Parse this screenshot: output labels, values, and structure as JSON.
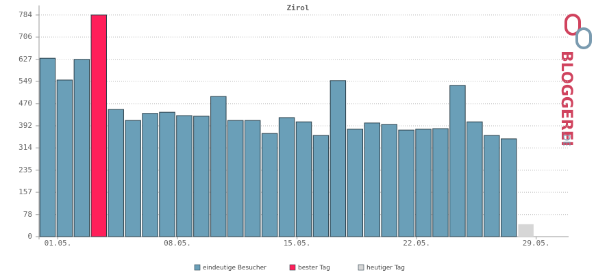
{
  "chart_data": {
    "type": "bar",
    "title": "Zirol",
    "categories": [
      "01.05.",
      null,
      null,
      null,
      null,
      null,
      null,
      "08.05.",
      null,
      null,
      null,
      null,
      null,
      null,
      "15.05.",
      null,
      null,
      null,
      null,
      null,
      null,
      "22.05.",
      null,
      null,
      null,
      null,
      null,
      null,
      "29.05.",
      null,
      null
    ],
    "series": [
      {
        "name": "eindeutige Besucher",
        "color": "#6a9fb8",
        "values": [
          631,
          554,
          627,
          null,
          450,
          411,
          436,
          440,
          428,
          426,
          496,
          411,
          411,
          365,
          421,
          406,
          358,
          552,
          380,
          402,
          397,
          377,
          380,
          382,
          535,
          406,
          358,
          346,
          null,
          null,
          null
        ]
      },
      {
        "name": "bester Tag",
        "color": "#ff1f5a",
        "values": [
          null,
          null,
          null,
          784,
          null,
          null,
          null,
          null,
          null,
          null,
          null,
          null,
          null,
          null,
          null,
          null,
          null,
          null,
          null,
          null,
          null,
          null,
          null,
          null,
          null,
          null,
          null,
          null,
          null,
          null,
          null
        ]
      },
      {
        "name": "heutiger Tag",
        "color": "#d6d6d6",
        "values": [
          null,
          null,
          null,
          null,
          null,
          null,
          null,
          null,
          null,
          null,
          null,
          null,
          null,
          null,
          null,
          null,
          null,
          null,
          null,
          null,
          null,
          null,
          null,
          null,
          null,
          null,
          null,
          null,
          44,
          null,
          null
        ]
      }
    ],
    "ylim": [
      0,
      808
    ],
    "yticks": [
      0,
      78,
      157,
      235,
      314,
      392,
      470,
      549,
      627,
      706,
      784
    ],
    "grid": true
  },
  "logo": {
    "name": "BLOGGEREI",
    "domain": ".DE"
  }
}
